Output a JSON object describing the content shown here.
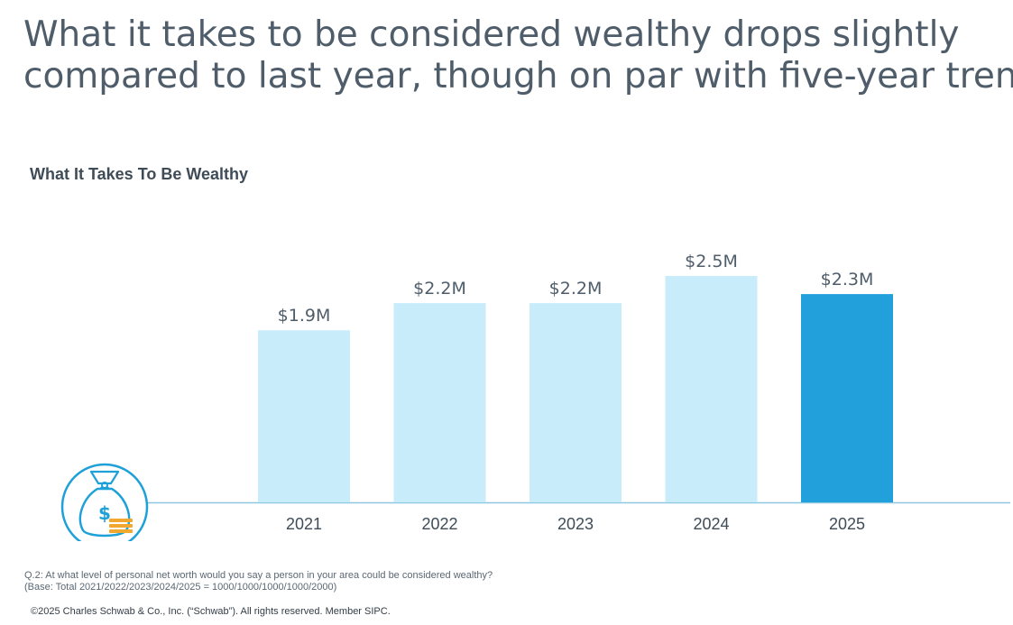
{
  "headline": {
    "line1": "What it takes to be considered wealthy drops slightly",
    "line2": "compared to last year, though on par with five-year trend"
  },
  "icon": "money-bag-icon",
  "colors": {
    "bar_light": "#c9ecfb",
    "bar_highlight": "#22a0dc",
    "axis_line": "#8ec8e0",
    "icon_blue": "#1ea0d8",
    "icon_gold": "#f0a830",
    "text_dark": "#4f5d6a"
  },
  "chart_data": {
    "type": "bar",
    "title": "What It Takes To Be Wealthy",
    "categories": [
      "2021",
      "2022",
      "2023",
      "2024",
      "2025"
    ],
    "values": [
      1.9,
      2.2,
      2.2,
      2.5,
      2.3
    ],
    "labels": [
      "$1.9M",
      "$2.2M",
      "$2.2M",
      "$2.5M",
      "$2.3M"
    ],
    "unit": "$M",
    "highlight": "2025",
    "ylim": [
      0,
      2.5
    ],
    "grid": false,
    "legend": "none"
  },
  "footnote": {
    "question": "Q.2:  At what level of personal net worth would you say a person in your area could be considered wealthy?",
    "base": "(Base: Total 2021/2022/2023/2024/2025 = 1000/1000/1000/1000/2000)"
  },
  "copyright": "©2025 Charles Schwab & Co., Inc. (“Schwab”). All rights reserved. Member SIPC."
}
